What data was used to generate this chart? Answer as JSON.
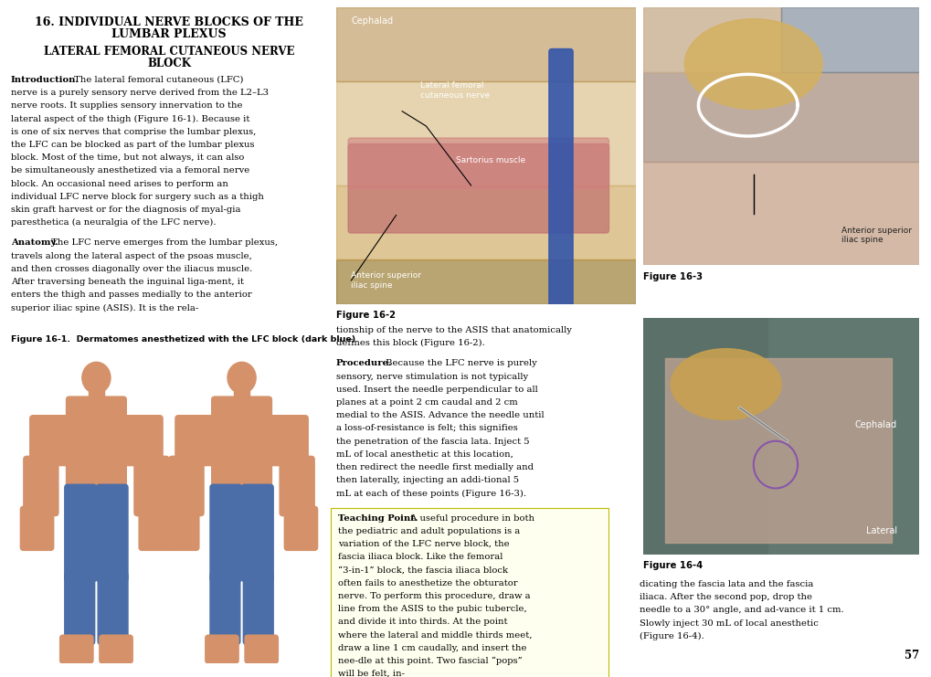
{
  "page_bg": "#ffffff",
  "title_line1": "16. INDIVIDUAL NERVE BLOCKS OF THE",
  "title_line2": "LUMBAR PLEXUS",
  "subtitle_line1": "LATERAL FEMORAL CUTANEOUS NERVE",
  "subtitle_line2": "BLOCK",
  "intro_bold": "Introduction.",
  "intro_text": " The lateral femoral cutaneous (LFC) nerve is a purely sensory nerve derived from the L2–L3 nerve roots. It supplies sensory innervation to the lateral aspect of the thigh (Figure 16-1). Because it is one of six nerves that comprise the lumbar plexus, the LFC can be blocked as part of the lumbar plexus block. Most of the time, but not always, it can also be simultaneously anesthetized via a femoral nerve block. An occasional need arises to perform an individual LFC nerve block for surgery such as a thigh skin graft harvest or for the diagnosis of myal-gia paresthetica (a neuralgia of the LFC nerve).",
  "anatomy_bold": "Anatomy.",
  "anatomy_text": " The LFC nerve emerges from the lumbar plexus, travels along the lateral aspect of the psoas muscle, and then crosses diagonally over the iliacus muscle. After traversing beneath the inguinal liga-ment, it enters the thigh and passes medially to the anterior superior iliac spine (ASIS). It is the rela-",
  "fig1_caption": "Figure 16-1.  Dermatomes anesthetized with the LFC block (dark blue)",
  "fig2_caption": "Figure 16-2",
  "fig3_caption": "Figure 16-3",
  "fig4_caption": "Figure 16-4",
  "mid_text_line1": "tionship of the nerve to the ASIS that anatomically",
  "mid_text_line2": "defines this block (Figure 16-2).",
  "procedure_bold": "Procedure.",
  "procedure_text": " Because the LFC nerve is purely sensory, nerve stimulation is not typically used. Insert the needle perpendicular to all planes at a point 2 cm caudal and 2 cm medial to the ASIS. Advance the needle until a loss-of-resistance is felt; this signifies the penetration of the fascia lata. Inject 5 mL of local anesthetic at this location, then redirect the needle first medially and then laterally, injecting an addi-tional 5 mL at each of these points (Figure 16-3).",
  "teaching_title": "Teaching Point.",
  "teaching_text": " A useful procedure in both the pediatric and adult populations is a variation of the LFC nerve block, the fascia iliaca block. Like the femoral “3-in-1” block, the fascia iliaca block often fails to anesthetize the obturator nerve. To perform this procedure, draw a line from the ASIS to the pubic tubercle, and divide it into thirds. At the point where the lateral and middle thirds meet, draw a line 1 cm caudally, and insert the nee-dle at this point. Two fascial “pops” will be felt, in-",
  "bottom_right_text": "dicating the fascia lata and the fascia iliaca. After the second pop, drop the needle to a 30° angle, and ad-vance it 1 cm. Slowly inject 30 mL of local anesthetic (Figure 16-4).",
  "page_number": "57",
  "teaching_bg": "#fffff0",
  "fig2_color": "#C8AA7A",
  "fig3_color": "#8A9BAA",
  "fig4_color": "#7A9090",
  "fig2_label_cephalad": "Cephalad",
  "fig2_label_nerve": "Lateral femoral\ncutaneous nerve",
  "fig2_label_sartorius": "Sartorius muscle",
  "fig2_label_asis": "Anterior superior\niliac spine",
  "fig3_label_asis": "Anterior superior\niliac spine",
  "fig4_label_cephalad": "Cephalad",
  "fig4_label_lateral": "Lateral"
}
